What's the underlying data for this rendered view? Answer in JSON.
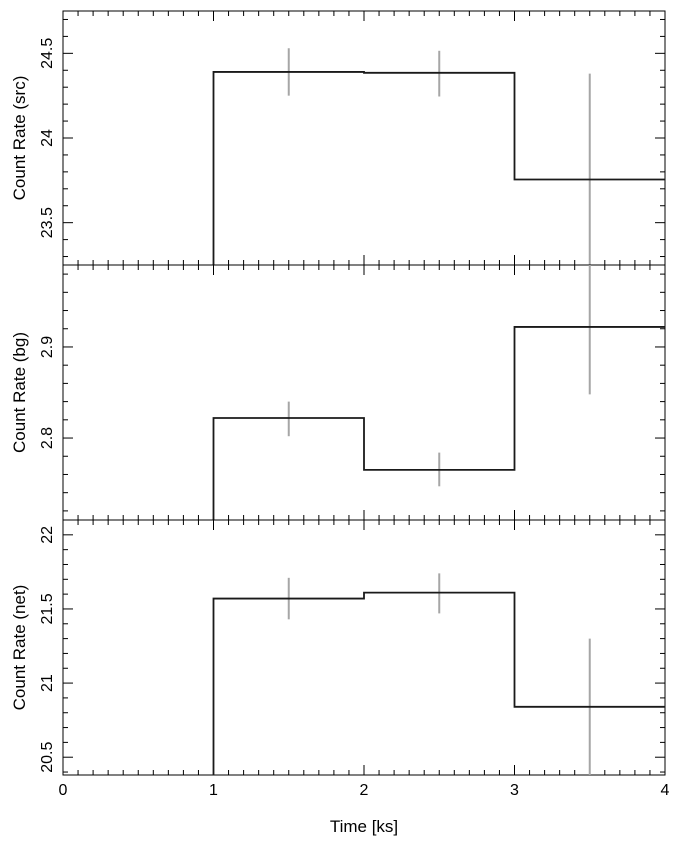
{
  "figure": {
    "xlabel": "Time [ks]"
  },
  "chart_data": [
    {
      "type": "line",
      "ylabel": "Count Rate (src)",
      "xlim": [
        0,
        4
      ],
      "ylim": [
        23.25,
        24.75
      ],
      "x_ticks": [
        0,
        1,
        2,
        3,
        4
      ],
      "y_ticks": [
        "23.5",
        "24",
        "24.5"
      ],
      "bins": [
        {
          "x_start": 1,
          "x_end": 2,
          "x_center": 1.5,
          "value": 24.39,
          "err_low": 24.25,
          "err_high": 24.53
        },
        {
          "x_start": 2,
          "x_end": 3,
          "x_center": 2.5,
          "value": 24.385,
          "err_low": 24.245,
          "err_high": 24.515
        },
        {
          "x_start": 3,
          "x_end": 4,
          "x_center": 3.5,
          "value": 23.755,
          "err_low": 23.25,
          "err_high": 24.38
        }
      ],
      "line_color": "#1a1a1a",
      "error_color": "#a6a6a6"
    },
    {
      "type": "line",
      "ylabel": "Count Rate (bg)",
      "xlim": [
        0,
        4
      ],
      "ylim": [
        2.71,
        2.99
      ],
      "x_ticks": [
        0,
        1,
        2,
        3,
        4
      ],
      "y_ticks": [
        "2.8",
        "2.9"
      ],
      "bins": [
        {
          "x_start": 1,
          "x_end": 2,
          "x_center": 1.5,
          "value": 2.822,
          "err_low": 2.802,
          "err_high": 2.84
        },
        {
          "x_start": 2,
          "x_end": 3,
          "x_center": 2.5,
          "value": 2.765,
          "err_low": 2.747,
          "err_high": 2.784
        },
        {
          "x_start": 3,
          "x_end": 4,
          "x_center": 3.5,
          "value": 2.922,
          "err_low": 2.848,
          "err_high": 2.99
        }
      ],
      "line_color": "#1a1a1a",
      "error_color": "#a6a6a6"
    },
    {
      "type": "line",
      "ylabel": "Count Rate (net)",
      "xlim": [
        0,
        4
      ],
      "ylim": [
        20.38,
        22.1
      ],
      "x_ticks": [
        "0",
        "1",
        "2",
        "3",
        "4"
      ],
      "y_ticks": [
        "20.5",
        "21",
        "21.5",
        "22"
      ],
      "bins": [
        {
          "x_start": 1,
          "x_end": 2,
          "x_center": 1.5,
          "value": 21.57,
          "err_low": 21.43,
          "err_high": 21.71
        },
        {
          "x_start": 2,
          "x_end": 3,
          "x_center": 2.5,
          "value": 21.61,
          "err_low": 21.47,
          "err_high": 21.74
        },
        {
          "x_start": 3,
          "x_end": 4,
          "x_center": 3.5,
          "value": 20.84,
          "err_low": 20.38,
          "err_high": 21.3
        }
      ],
      "line_color": "#1a1a1a",
      "error_color": "#a6a6a6"
    }
  ]
}
